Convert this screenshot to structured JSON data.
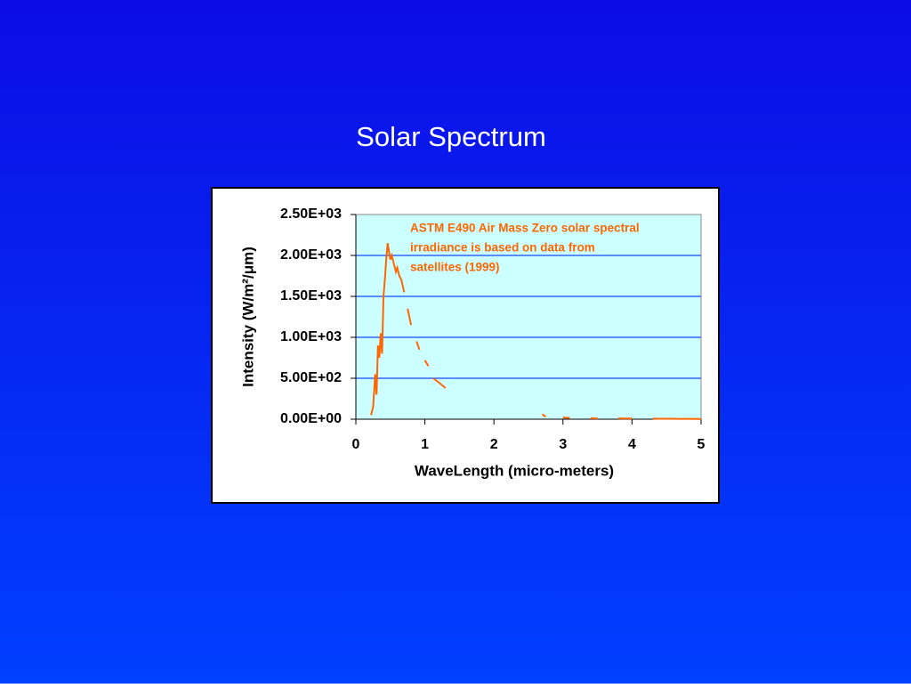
{
  "title": "Solar Spectrum",
  "chart_data": {
    "type": "line",
    "x_label": "WaveLength (micro-meters)",
    "y_label": "Intensity (W/m²/μm)",
    "annotation": [
      "ASTM E490 Air Mass Zero solar spectral",
      "irradiance is based on data from",
      "satellites (1999)"
    ],
    "series": [
      {
        "name": "ASTM E490",
        "color": "#ff6600",
        "x": [
          0.22,
          0.25,
          0.28,
          0.3,
          0.32,
          0.34,
          0.36,
          0.38,
          0.4,
          0.42,
          0.44,
          0.46,
          0.48,
          0.5,
          0.52,
          0.55,
          0.58,
          0.6,
          0.63,
          0.66,
          0.7,
          0.72,
          0.75,
          0.8,
          0.85,
          0.88,
          0.92,
          0.96,
          1.0,
          1.05,
          1.08,
          1.12,
          1.2,
          1.3,
          1.5,
          2.7,
          2.75,
          2.9,
          3.0,
          3.1,
          3.3,
          3.4,
          3.5,
          3.7,
          3.8,
          4.0,
          4.1,
          4.3,
          4.4,
          4.6,
          4.8,
          5.0
        ],
        "values": [
          50,
          150,
          550,
          300,
          900,
          750,
          1050,
          800,
          1500,
          1700,
          1950,
          2150,
          2050,
          1950,
          2000,
          1900,
          1800,
          1850,
          1750,
          1700,
          1550,
          null,
          1350,
          1150,
          null,
          950,
          850,
          null,
          720,
          650,
          null,
          500,
          450,
          380,
          null,
          60,
          30,
          null,
          20,
          15,
          null,
          12,
          10,
          null,
          10,
          8,
          null,
          7,
          6,
          5,
          4,
          3
        ]
      }
    ],
    "xlim": [
      0,
      5
    ],
    "xticks": [
      0,
      1,
      2,
      3,
      4,
      5
    ],
    "ylim": [
      0,
      2500
    ],
    "yticks": [
      {
        "value": 0,
        "label": "0.00E+00"
      },
      {
        "value": 500,
        "label": "5.00E+02"
      },
      {
        "value": 1000,
        "label": "1.00E+03"
      },
      {
        "value": 1500,
        "label": "1.50E+03"
      },
      {
        "value": 2000,
        "label": "2.00E+03"
      },
      {
        "value": 2500,
        "label": "2.50E+03"
      }
    ],
    "grid": true
  }
}
